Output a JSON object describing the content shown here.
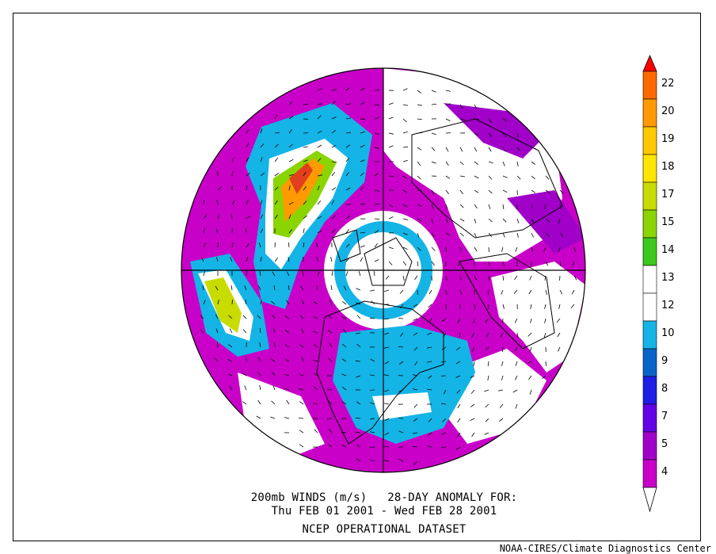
{
  "caption": {
    "line1": "200mb WINDS (m/s)   28-DAY ANOMALY FOR:",
    "line2": "Thu FEB 01 2001 - Wed FEB 28 2001",
    "line3": "NCEP OPERATIONAL DATASET"
  },
  "footer": "NOAA-CIRES/Climate Diagnostics Center",
  "colorbar": {
    "levels": [
      {
        "label": "22",
        "color": "#ff6a00"
      },
      {
        "label": "20",
        "color": "#ff9a00"
      },
      {
        "label": "19",
        "color": "#ffc800"
      },
      {
        "label": "18",
        "color": "#ffe600"
      },
      {
        "label": "17",
        "color": "#c8dc00"
      },
      {
        "label": "15",
        "color": "#8ad400"
      },
      {
        "label": "14",
        "color": "#3cc81e"
      },
      {
        "label": "13",
        "color": "#ffffff"
      },
      {
        "label": "12",
        "color": "#ffffff"
      },
      {
        "label": "10",
        "color": "#14b4e6"
      },
      {
        "label": "9",
        "color": "#0a64c8"
      },
      {
        "label": "8",
        "color": "#1e1ee6"
      },
      {
        "label": "7",
        "color": "#6400e6"
      },
      {
        "label": "5",
        "color": "#a000c8"
      },
      {
        "label": "4",
        "color": "#c800c8"
      }
    ],
    "top_arrow_color": "#ff0000",
    "bottom_level": {
      "label": "4",
      "color": "#9600b4"
    },
    "bottom_arrow_color": "#ffffff"
  }
}
